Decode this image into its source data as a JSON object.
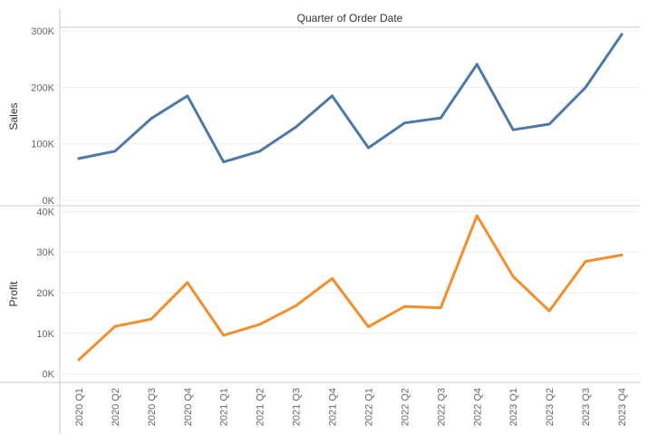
{
  "chart_data": {
    "type": "line",
    "title": "",
    "header": "Quarter of Order Date",
    "categories": [
      "2020 Q1",
      "2020 Q2",
      "2020 Q3",
      "2020 Q4",
      "2021 Q1",
      "2021 Q2",
      "2021 Q3",
      "2021 Q4",
      "2022 Q1",
      "2022 Q2",
      "2022 Q3",
      "2022 Q4",
      "2023 Q1",
      "2023 Q2",
      "2023 Q3",
      "2023 Q4"
    ],
    "panes": [
      {
        "ylabel": "Sales",
        "ylim": [
          0,
          310000
        ],
        "ticks": [
          0,
          100000,
          200000,
          300000
        ],
        "tick_labels": [
          "0K",
          "100K",
          "200K",
          "300K"
        ],
        "series": [
          {
            "color": "#4e79a7",
            "values": [
              74000,
              87000,
              145000,
              185000,
              68000,
              87000,
              130000,
              185000,
              93000,
              137000,
              146000,
              241000,
              125000,
              135000,
              200000,
              294000
            ]
          }
        ]
      },
      {
        "ylabel": "Profit",
        "ylim": [
          -1000,
          41000
        ],
        "ticks": [
          0,
          10000,
          20000,
          30000,
          40000
        ],
        "tick_labels": [
          "0K",
          "10K",
          "20K",
          "30K",
          "40K"
        ],
        "series": [
          {
            "color": "#f28e2b",
            "values": [
              3500,
              11700,
              13500,
              22500,
              9500,
              12200,
              16800,
              23500,
              11600,
              16600,
              16300,
              39000,
              24000,
              15500,
              27700,
              29300
            ]
          }
        ]
      }
    ],
    "grid": true,
    "legend": "none"
  }
}
